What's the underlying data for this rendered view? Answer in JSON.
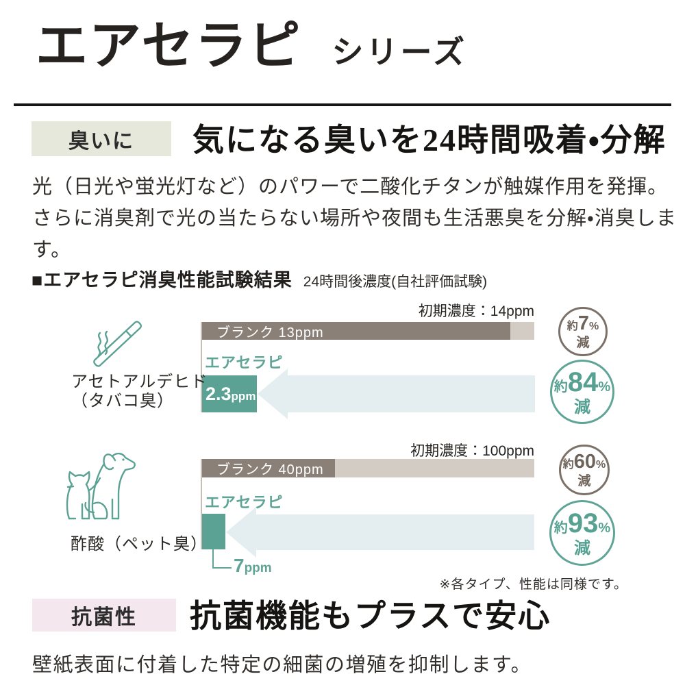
{
  "page": {
    "title": "エアセラピ",
    "title_suffix": "シリーズ"
  },
  "colors": {
    "teal": "#5ba294",
    "teal_text": "#5fa496",
    "brown": "#7c7168",
    "bar_dark": "#8a8078",
    "bar_light": "#d3ccc5",
    "arrow": "#e4eef0",
    "badge_odor_bg": "#e6e8db",
    "badge_antibacterial_bg": "#f4e8ee"
  },
  "sections": {
    "odor": {
      "badge": "臭いに",
      "heading": "気になる臭いを24時間吸着・分解",
      "body_line1": "光（日光や蛍光灯など）のパワーで二酸化チタンが触媒作用を発揮。",
      "body_line2": "さらに消臭剤で光の当たらない場所や夜間も生活悪臭を分解・消臭します。"
    },
    "test": {
      "heading": "■エアセラピ消臭性能試験結果",
      "subheading": "24時間後濃度(自社評価試験)",
      "note": "※各タイプ、性能は同様です。"
    },
    "antibacterial": {
      "badge": "抗菌性",
      "heading": "抗菌機能もプラスで安心",
      "body": "壁紙表面に付着した特定の細菌の増殖を抑制します。"
    }
  },
  "chart_data": [
    {
      "type": "bar",
      "odor_name": "アセトアルデヒド",
      "odor_note": "（タバコ臭）",
      "icon": "cigarette-icon",
      "initial_label": "初期濃度：14ppm",
      "initial_ppm": 14,
      "blank_label": "ブランク 13ppm",
      "blank_ppm": 13,
      "series_label": "エアセラピ",
      "result_ppm": 2.3,
      "result_value": "2.3",
      "result_unit": "ppm",
      "reductions": [
        {
          "prefix": "約",
          "value": "7",
          "unit": "%",
          "suffix": "減"
        },
        {
          "prefix": "約",
          "value": "84",
          "unit": "%",
          "suffix": "減"
        }
      ]
    },
    {
      "type": "bar",
      "odor_name": "酢酸（ペット臭）",
      "odor_note": "",
      "icon": "dog-cat-icon",
      "initial_label": "初期濃度：100ppm",
      "initial_ppm": 100,
      "blank_label": "ブランク 40ppm",
      "blank_ppm": 40,
      "series_label": "エアセラピ",
      "result_ppm": 7,
      "result_value": "7",
      "result_unit": "ppm",
      "reductions": [
        {
          "prefix": "約",
          "value": "60",
          "unit": "%",
          "suffix": "減"
        },
        {
          "prefix": "約",
          "value": "93",
          "unit": "%",
          "suffix": "減"
        }
      ]
    }
  ]
}
